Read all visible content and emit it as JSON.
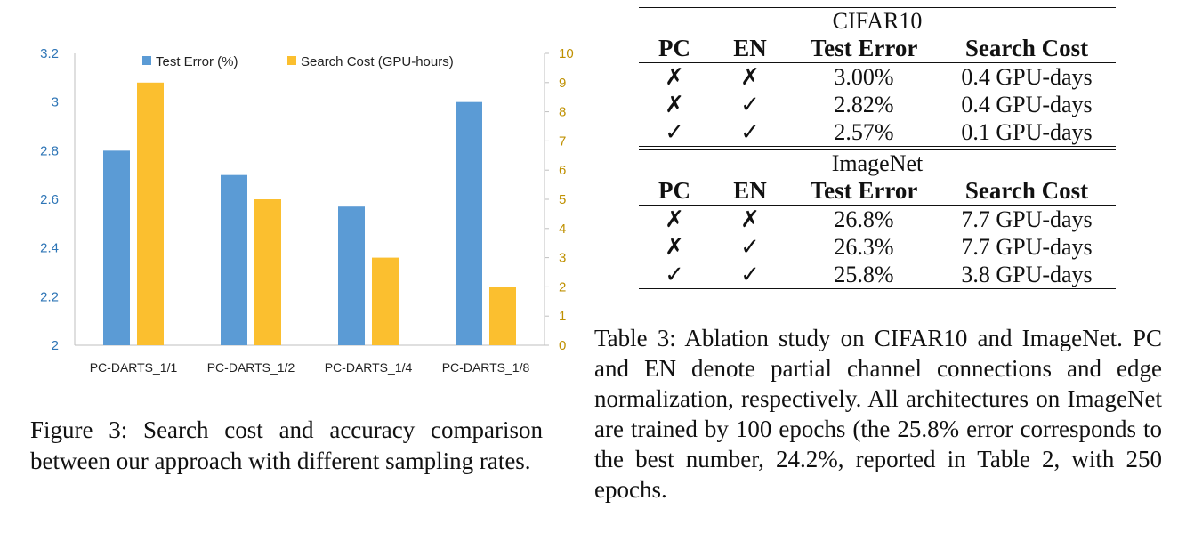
{
  "chart_data": {
    "type": "bar",
    "categories": [
      "PC-DARTS_1/1",
      "PC-DARTS_1/2",
      "PC-DARTS_1/4",
      "PC-DARTS_1/8"
    ],
    "series": [
      {
        "name": "Test Error (%)",
        "axis": "left",
        "color": "#5b9bd5",
        "values": [
          2.8,
          2.7,
          2.57,
          3.0
        ]
      },
      {
        "name": "Search Cost (GPU-hours)",
        "axis": "right",
        "color": "#fbbf2f",
        "values": [
          9.0,
          5.0,
          3.0,
          2.0
        ]
      }
    ],
    "left_axis": {
      "ylim": [
        2,
        3.2
      ],
      "ticks": [
        "2",
        "2.2",
        "2.4",
        "2.6",
        "2.8",
        "3",
        "3.2"
      ],
      "color": "#2e75b6"
    },
    "right_axis": {
      "ylim": [
        0,
        10
      ],
      "ticks": [
        "0",
        "1",
        "2",
        "3",
        "4",
        "5",
        "6",
        "7",
        "8",
        "9",
        "10"
      ],
      "color": "#bf9000"
    },
    "legend": "top-center",
    "grid": false
  },
  "figure_caption": "Figure 3: Search cost and accuracy comparison between our approach with different sampling rates.",
  "table": {
    "sections": [
      {
        "dataset": "CIFAR10",
        "headers": [
          "PC",
          "EN",
          "Test Error",
          "Search Cost"
        ],
        "rows": [
          [
            "✗",
            "✗",
            "3.00%",
            "0.4 GPU-days"
          ],
          [
            "✗",
            "✓",
            "2.82%",
            "0.4 GPU-days"
          ],
          [
            "✓",
            "✓",
            "2.57%",
            "0.1 GPU-days"
          ]
        ]
      },
      {
        "dataset": "ImageNet",
        "headers": [
          "PC",
          "EN",
          "Test Error",
          "Search Cost"
        ],
        "rows": [
          [
            "✗",
            "✗",
            "26.8%",
            "7.7 GPU-days"
          ],
          [
            "✗",
            "✓",
            "26.3%",
            "7.7 GPU-days"
          ],
          [
            "✓",
            "✓",
            "25.8%",
            "3.8 GPU-days"
          ]
        ]
      }
    ]
  },
  "table_caption": "Table 3: Ablation study on CIFAR10 and ImageNet. PC and EN denote partial channel connections and edge normalization, respectively. All architectures on ImageNet are trained by 100 epochs (the 25.8% error corresponds to the best number, 24.2%, reported in Table 2, with 250 epochs."
}
